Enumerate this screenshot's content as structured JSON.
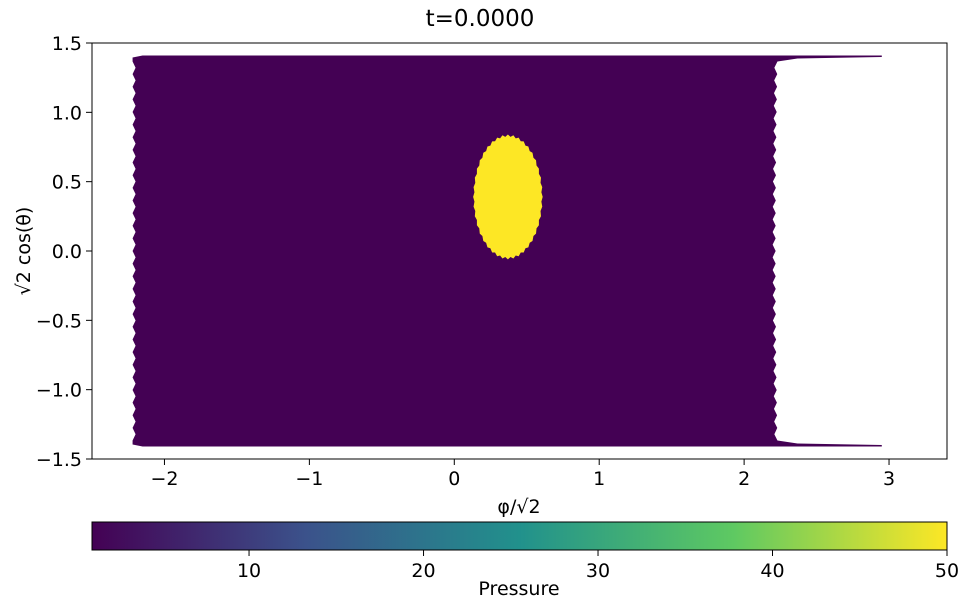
{
  "chart_data": {
    "type": "heatmap",
    "title": "t=0.0000",
    "xlabel": "φ/√2",
    "ylabel": "√2 cos(θ)",
    "xlim": [
      -2.5,
      3.4
    ],
    "ylim": [
      -1.5,
      1.5
    ],
    "x_ticks": [
      -2,
      -1,
      0,
      1,
      2,
      3
    ],
    "x_tick_labels": [
      "−2",
      "−1",
      "0",
      "1",
      "2",
      "3"
    ],
    "y_ticks": [
      -1.5,
      -1.0,
      -0.5,
      0.0,
      0.5,
      1.0,
      1.5
    ],
    "y_tick_labels": [
      "−1.5",
      "−1.0",
      "−0.5",
      "0.0",
      "0.5",
      "1.0",
      "1.5"
    ],
    "field_domain": {
      "x_range": [
        -2.22,
        2.23
      ],
      "y_range": [
        -1.41,
        1.41
      ],
      "cap_tip_x": 2.95
    },
    "background_value": 1,
    "blob": {
      "value": 50,
      "center": [
        0.37,
        0.39
      ],
      "radius_x": 0.24,
      "radius_y": 0.45
    },
    "colorbar": {
      "label": "Pressure",
      "range": [
        1,
        50
      ],
      "ticks": [
        10,
        20,
        30,
        40,
        50
      ],
      "tick_labels": [
        "10",
        "20",
        "30",
        "40",
        "50"
      ],
      "colormap_stops": [
        "#440154",
        "#3b528b",
        "#21918c",
        "#5ec962",
        "#fde725"
      ]
    },
    "grid": false
  }
}
